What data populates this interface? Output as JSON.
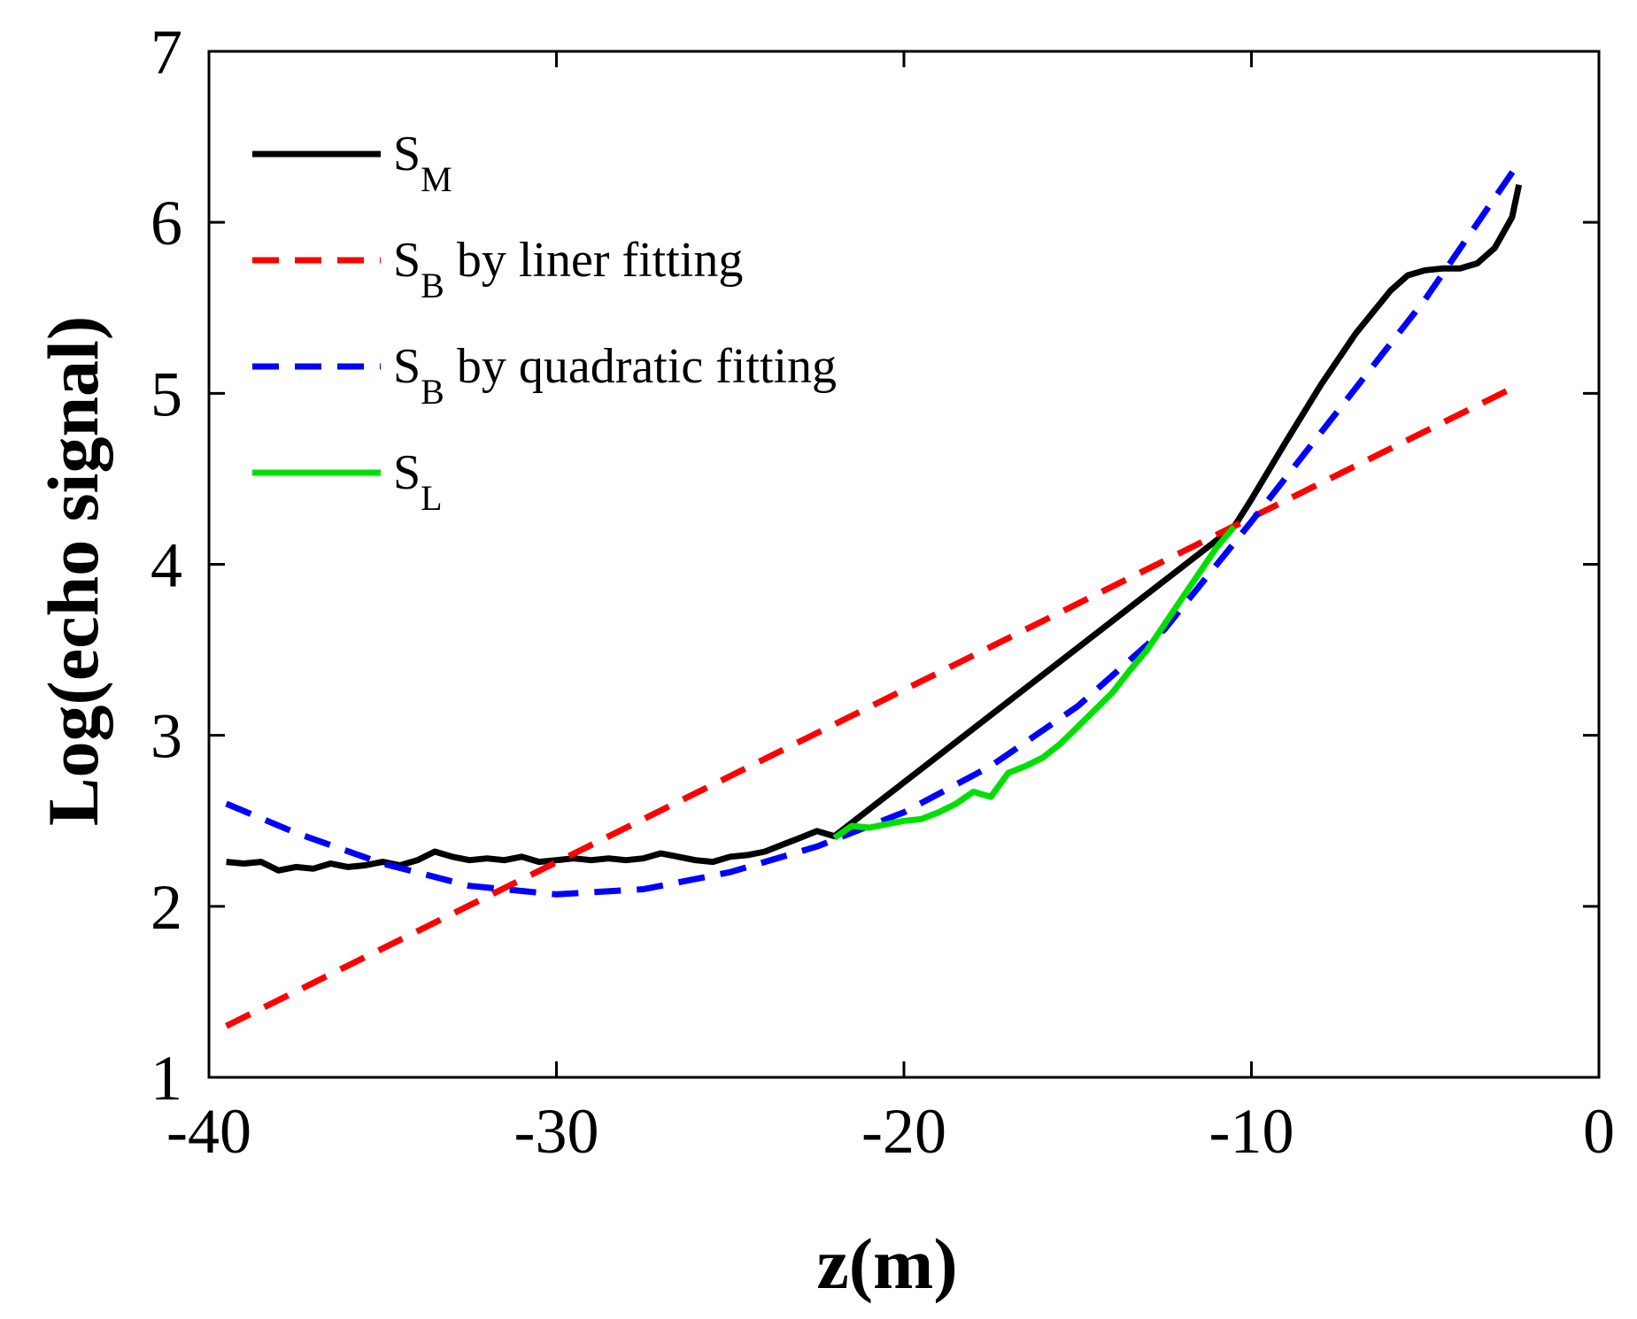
{
  "chart_data": {
    "type": "line",
    "title": "",
    "xlabel": "z(m)",
    "ylabel": "Log(echo signal)",
    "xlim": [
      -40,
      0
    ],
    "ylim": [
      1,
      7
    ],
    "xticks": [
      -40,
      -30,
      -20,
      -10,
      0
    ],
    "yticks": [
      1,
      2,
      3,
      4,
      5,
      6,
      7
    ],
    "xtick_labels": [
      "-40",
      "-30",
      "-20",
      "-10",
      "0"
    ],
    "ytick_labels": [
      "1",
      "2",
      "3",
      "4",
      "5",
      "6",
      "7"
    ],
    "grid": false,
    "legend_position": "top-left",
    "series": [
      {
        "name_main": "S",
        "name_sub": "M",
        "name_rest": "",
        "color": "#000000",
        "style": "solid",
        "x": [
          -39.5,
          -39,
          -38.5,
          -38,
          -37.5,
          -37,
          -36.5,
          -36,
          -35.5,
          -35,
          -34.5,
          -34,
          -33.5,
          -33,
          -32.5,
          -32,
          -31.5,
          -31,
          -30.5,
          -30,
          -29.5,
          -29,
          -28.5,
          -28,
          -27.5,
          -27,
          -26.5,
          -26,
          -25.5,
          -25,
          -24.5,
          -24,
          -23.5,
          -23,
          -22.5,
          -22,
          -10.5,
          -10,
          -9,
          -8,
          -7,
          -6,
          -5.5,
          -5,
          -4.5,
          -4,
          -3.5,
          -3,
          -2.5,
          -2.3
        ],
        "y": [
          2.26,
          2.25,
          2.26,
          2.21,
          2.23,
          2.22,
          2.25,
          2.23,
          2.24,
          2.26,
          2.24,
          2.27,
          2.32,
          2.29,
          2.27,
          2.28,
          2.27,
          2.29,
          2.26,
          2.27,
          2.28,
          2.27,
          2.28,
          2.27,
          2.28,
          2.31,
          2.29,
          2.27,
          2.26,
          2.29,
          2.3,
          2.32,
          2.36,
          2.4,
          2.44,
          2.41,
          4.22,
          4.38,
          4.72,
          5.05,
          5.35,
          5.6,
          5.69,
          5.72,
          5.73,
          5.73,
          5.76,
          5.85,
          6.03,
          6.22
        ]
      },
      {
        "name_main": "S",
        "name_sub": "B",
        "name_rest": " by liner fitting",
        "color": "#ff0000",
        "style": "dashed",
        "x": [
          -39.5,
          -2.3
        ],
        "y": [
          1.3,
          5.05
        ]
      },
      {
        "name_main": "S",
        "name_sub": "B",
        "name_rest": " by quadratic fitting",
        "color": "#0000ff",
        "style": "dashed",
        "x": [
          -39.5,
          -37.5,
          -35,
          -32.5,
          -30,
          -27.5,
          -25,
          -22.5,
          -20,
          -17.5,
          -15,
          -12.5,
          -10,
          -7.5,
          -5,
          -2.3
        ],
        "y": [
          2.6,
          2.43,
          2.25,
          2.12,
          2.07,
          2.1,
          2.2,
          2.35,
          2.55,
          2.82,
          3.17,
          3.62,
          4.25,
          4.9,
          5.55,
          6.35
        ]
      },
      {
        "name_main": "S",
        "name_sub": "L",
        "name_rest": "",
        "color": "#00e000",
        "style": "solid",
        "x": [
          -22,
          -21.5,
          -21,
          -20.5,
          -20,
          -19.5,
          -19,
          -18.5,
          -18,
          -17.5,
          -17,
          -16.5,
          -16,
          -15.5,
          -15,
          -14.5,
          -14,
          -13.5,
          -13,
          -12.5,
          -12,
          -11.5,
          -11,
          -10.5
        ],
        "y": [
          2.4,
          2.47,
          2.46,
          2.48,
          2.5,
          2.51,
          2.55,
          2.6,
          2.67,
          2.64,
          2.78,
          2.82,
          2.87,
          2.95,
          3.05,
          3.15,
          3.25,
          3.38,
          3.5,
          3.65,
          3.8,
          3.95,
          4.1,
          4.22
        ]
      }
    ]
  }
}
